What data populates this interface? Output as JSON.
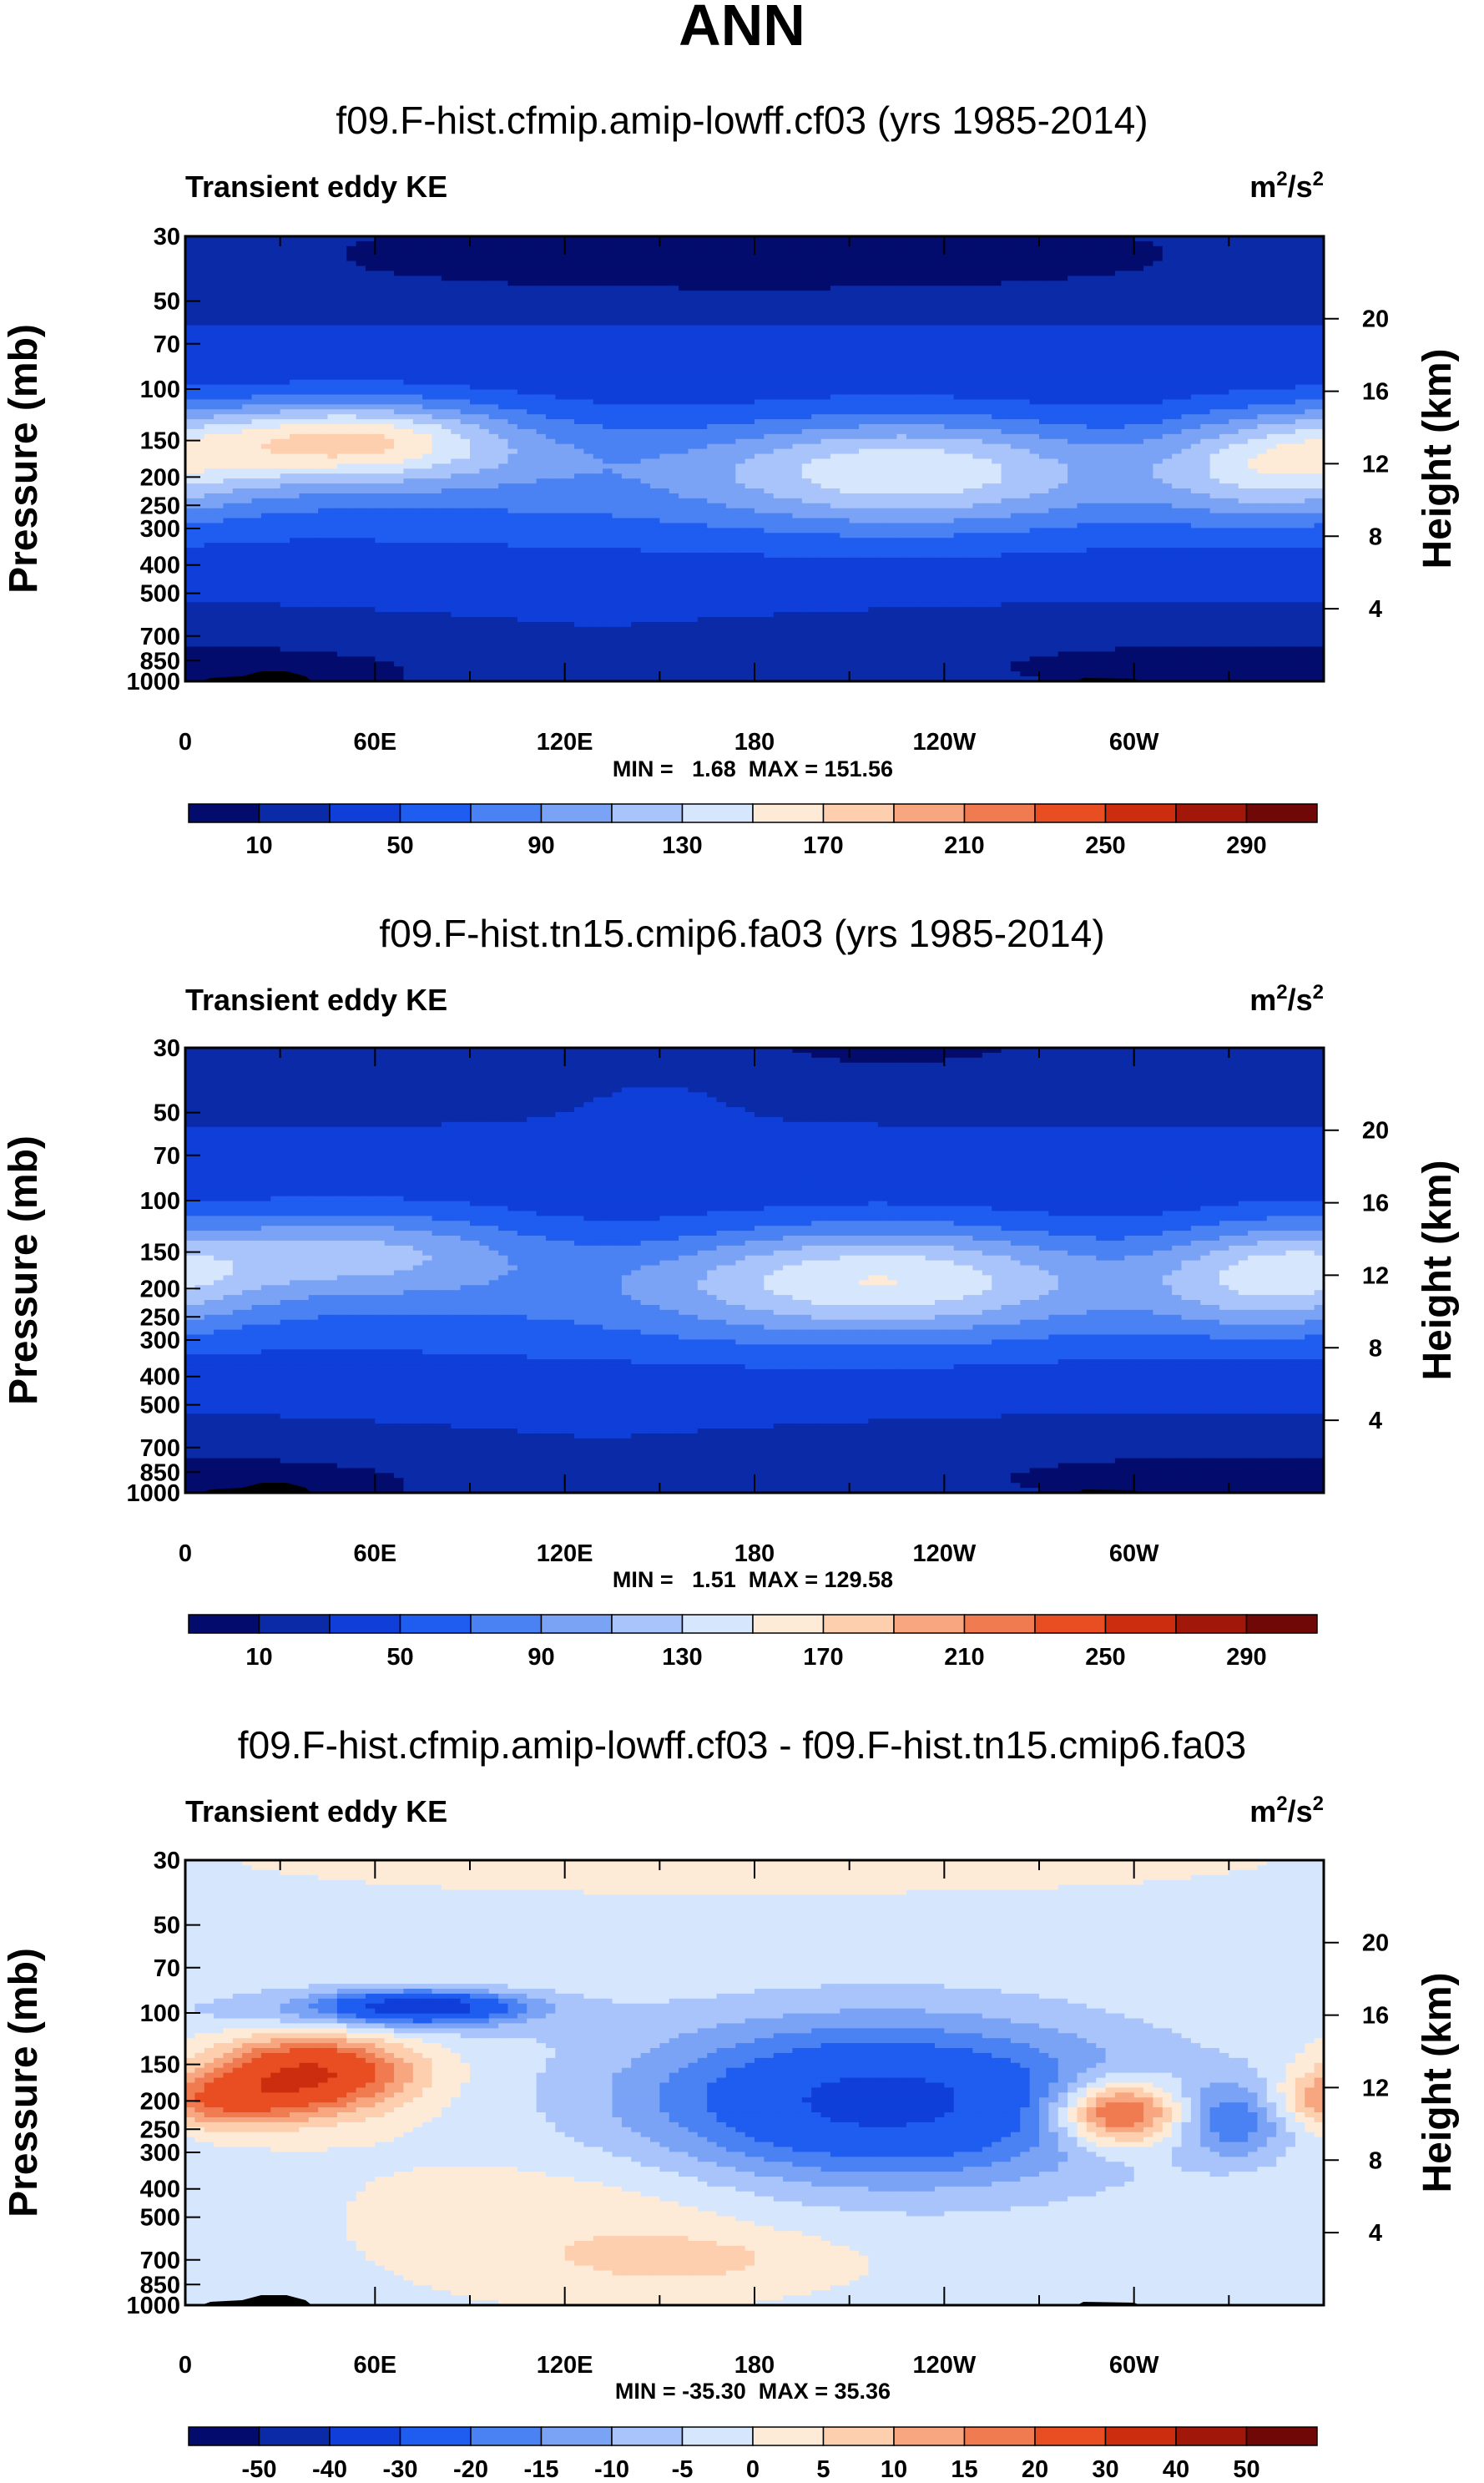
{
  "figure": {
    "title": "ANN",
    "colors": {
      "abs_scale": [
        "#030c6c",
        "#0a2aa8",
        "#0f3fd8",
        "#1f5cf0",
        "#4b82f3",
        "#7aa3f6",
        "#a8c4fa",
        "#d6e6fd",
        "#fdebd8",
        "#fdcfae",
        "#f7a680",
        "#f17b51",
        "#e84e22",
        "#cc2d0f",
        "#a1170a",
        "#700808"
      ],
      "diff_scale": [
        "#030c6c",
        "#0a2aa8",
        "#0f3fd8",
        "#1f5cf0",
        "#4b82f3",
        "#7aa3f6",
        "#a8c4fa",
        "#d6e6fd",
        "#fdebd8",
        "#fdcfae",
        "#f7a680",
        "#f17b51",
        "#e84e22",
        "#cc2d0f",
        "#a1170a",
        "#700808"
      ],
      "topography": "#000000"
    }
  },
  "chart_data": [
    {
      "type": "heatmap",
      "title": "f09.F-hist.cfmip.amip-lowff.cf03 (yrs 1985-2014)",
      "left_label": "Transient eddy KE",
      "units": "m²/s²",
      "units_base": "m",
      "units_exp": "2",
      "units_mid": "/s",
      "ylabel": "Pressure (mb)",
      "ylabel_right": "Height (km)",
      "x_ticks": [
        "0",
        "60E",
        "120E",
        "180",
        "120W",
        "60W"
      ],
      "y_ticks": [
        "30",
        "50",
        "70",
        "100",
        "150",
        "200",
        "250",
        "300",
        "400",
        "500",
        "700",
        "850",
        "1000"
      ],
      "y_ticks_right": [
        "20",
        "16",
        "12",
        "8",
        "4"
      ],
      "stats": "MIN =   1.68  MAX = 151.56",
      "colorbar_labels": [
        "10",
        "50",
        "90",
        "130",
        "170",
        "210",
        "250",
        "290"
      ],
      "colorbar_levels": [
        0,
        10,
        30,
        50,
        70,
        90,
        110,
        130,
        150,
        170,
        190,
        210,
        230,
        250,
        270,
        290,
        310
      ],
      "field": {
        "background": 30,
        "blobs": [
          {
            "lon": 180,
            "p": 30,
            "sx": 180,
            "sy": 0.35,
            "v": -22
          },
          {
            "lon": 180,
            "p": 45,
            "sx": 180,
            "sy": 0.25,
            "v": -10
          },
          {
            "lon": 180,
            "p": 70,
            "sx": 180,
            "sy": 0.2,
            "v": 10
          },
          {
            "lon": 50,
            "p": 150,
            "sx": 35,
            "sy": 0.22,
            "v": 110
          },
          {
            "lon": 90,
            "p": 160,
            "sx": 60,
            "sy": 0.3,
            "v": 25
          },
          {
            "lon": 230,
            "p": 185,
            "sx": 45,
            "sy": 0.3,
            "v": 85
          },
          {
            "lon": 345,
            "p": 180,
            "sx": 28,
            "sy": 0.3,
            "v": 85
          },
          {
            "lon": 180,
            "p": 220,
            "sx": 180,
            "sy": 0.35,
            "v": 35
          },
          {
            "lon": 180,
            "p": 350,
            "sx": 180,
            "sy": 0.3,
            "v": 5
          },
          {
            "lon": 310,
            "p": 900,
            "sx": 80,
            "sy": 0.25,
            "v": -24
          },
          {
            "lon": 30,
            "p": 950,
            "sx": 40,
            "sy": 0.15,
            "v": -20
          }
        ]
      }
    },
    {
      "type": "heatmap",
      "title": "f09.F-hist.tn15.cmip6.fa03 (yrs 1985-2014)",
      "left_label": "Transient eddy KE",
      "units": "m²/s²",
      "units_base": "m",
      "units_exp": "2",
      "units_mid": "/s",
      "ylabel": "Pressure (mb)",
      "ylabel_right": "Height (km)",
      "x_ticks": [
        "0",
        "60E",
        "120E",
        "180",
        "120W",
        "60W"
      ],
      "y_ticks": [
        "30",
        "50",
        "70",
        "100",
        "150",
        "200",
        "250",
        "300",
        "400",
        "500",
        "700",
        "850",
        "1000"
      ],
      "y_ticks_right": [
        "20",
        "16",
        "12",
        "8",
        "4"
      ],
      "stats": "MIN =   1.51  MAX = 129.58",
      "colorbar_labels": [
        "10",
        "50",
        "90",
        "130",
        "170",
        "210",
        "250",
        "290"
      ],
      "colorbar_levels": [
        0,
        10,
        30,
        50,
        70,
        90,
        110,
        130,
        150,
        170,
        190,
        210,
        230,
        250,
        270,
        290,
        310
      ],
      "field": {
        "background": 30,
        "blobs": [
          {
            "lon": 180,
            "p": 30,
            "sx": 180,
            "sy": 0.35,
            "v": -22
          },
          {
            "lon": 150,
            "p": 40,
            "sx": 25,
            "sy": 0.25,
            "v": 15
          },
          {
            "lon": 180,
            "p": 70,
            "sx": 180,
            "sy": 0.2,
            "v": 10
          },
          {
            "lon": 55,
            "p": 150,
            "sx": 40,
            "sy": 0.25,
            "v": 70
          },
          {
            "lon": 220,
            "p": 180,
            "sx": 50,
            "sy": 0.3,
            "v": 90
          },
          {
            "lon": 345,
            "p": 180,
            "sx": 28,
            "sy": 0.3,
            "v": 80
          },
          {
            "lon": 180,
            "p": 220,
            "sx": 180,
            "sy": 0.35,
            "v": 35
          },
          {
            "lon": 180,
            "p": 350,
            "sx": 180,
            "sy": 0.3,
            "v": 5
          },
          {
            "lon": 310,
            "p": 900,
            "sx": 80,
            "sy": 0.25,
            "v": -24
          },
          {
            "lon": 30,
            "p": 950,
            "sx": 40,
            "sy": 0.15,
            "v": -20
          }
        ]
      }
    },
    {
      "type": "heatmap",
      "title": "f09.F-hist.cfmip.amip-lowff.cf03 - f09.F-hist.tn15.cmip6.fa03",
      "left_label": "Transient eddy KE",
      "units": "m²/s²",
      "units_base": "m",
      "units_exp": "2",
      "units_mid": "/s",
      "ylabel": "Pressure (mb)",
      "ylabel_right": "Height (km)",
      "x_ticks": [
        "0",
        "60E",
        "120E",
        "180",
        "120W",
        "60W"
      ],
      "y_ticks": [
        "30",
        "50",
        "70",
        "100",
        "150",
        "200",
        "250",
        "300",
        "400",
        "500",
        "700",
        "850",
        "1000"
      ],
      "y_ticks_right": [
        "20",
        "16",
        "12",
        "8",
        "4"
      ],
      "stats": "MIN = -35.30  MAX = 35.36",
      "colorbar_labels": [
        "-50",
        "-40",
        "-30",
        "-20",
        "-15",
        "-10",
        "-5",
        "0",
        "5",
        "10",
        "15",
        "20",
        "30",
        "40",
        "50"
      ],
      "colorbar_levels": [
        -60,
        -50,
        -40,
        -30,
        -20,
        -15,
        -10,
        -5,
        0,
        5,
        10,
        15,
        20,
        30,
        40,
        50,
        60
      ],
      "field": {
        "background": -1,
        "blobs": [
          {
            "lon": 40,
            "p": 160,
            "sx": 22,
            "sy": 0.22,
            "v": 32
          },
          {
            "lon": 10,
            "p": 200,
            "sx": 18,
            "sy": 0.15,
            "v": 18
          },
          {
            "lon": 60,
            "p": 100,
            "sx": 40,
            "sy": 0.14,
            "v": -12
          },
          {
            "lon": 75,
            "p": 95,
            "sx": 20,
            "sy": 0.08,
            "v": -28
          },
          {
            "lon": 220,
            "p": 200,
            "sx": 55,
            "sy": 0.45,
            "v": -32
          },
          {
            "lon": 295,
            "p": 220,
            "sx": 14,
            "sy": 0.18,
            "v": 33
          },
          {
            "lon": 332,
            "p": 230,
            "sx": 12,
            "sy": 0.22,
            "v": -16
          },
          {
            "lon": 180,
            "p": 30,
            "sx": 90,
            "sy": 0.15,
            "v": 5
          },
          {
            "lon": 130,
            "p": 500,
            "sx": 45,
            "sy": 0.4,
            "v": 5
          },
          {
            "lon": 160,
            "p": 700,
            "sx": 30,
            "sy": 0.15,
            "v": 6
          }
        ]
      }
    }
  ]
}
